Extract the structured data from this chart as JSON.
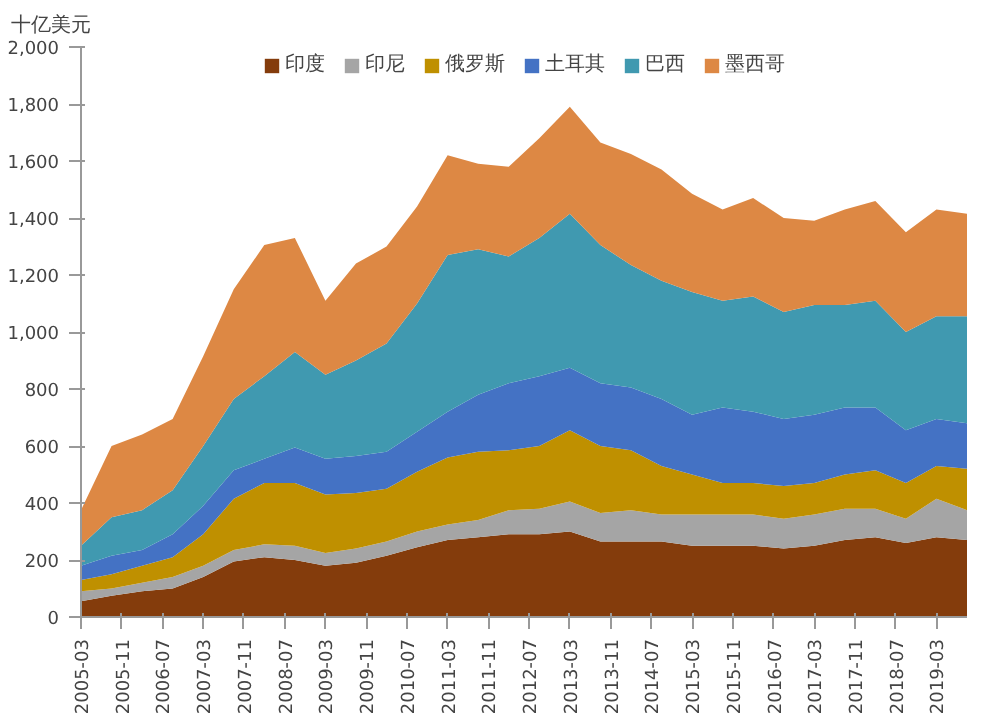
{
  "chart_data": {
    "type": "area",
    "stacked": true,
    "ylabel": "十亿美元",
    "legend": "top",
    "grid": false,
    "x": [
      "2005-03",
      "2005-09",
      "2006-03",
      "2006-09",
      "2007-03",
      "2007-09",
      "2008-03",
      "2008-09",
      "2009-03",
      "2009-09",
      "2010-03",
      "2010-09",
      "2011-03",
      "2011-09",
      "2012-03",
      "2012-09",
      "2013-03",
      "2013-09",
      "2014-03",
      "2014-09",
      "2015-03",
      "2015-09",
      "2016-03",
      "2016-09",
      "2017-03",
      "2017-09",
      "2018-03",
      "2018-09",
      "2019-03",
      "2019-09"
    ],
    "series": [
      {
        "name": "印度",
        "color": "#843c0c",
        "values": [
          55,
          75,
          90,
          100,
          140,
          195,
          210,
          200,
          180,
          190,
          215,
          245,
          270,
          280,
          290,
          290,
          300,
          265,
          265,
          265,
          250,
          250,
          250,
          240,
          250,
          270,
          280,
          260,
          280,
          270
        ]
      },
      {
        "name": "印尼",
        "color": "#a5a5a5",
        "values": [
          35,
          25,
          30,
          40,
          40,
          40,
          45,
          50,
          45,
          50,
          50,
          55,
          55,
          60,
          85,
          90,
          105,
          100,
          110,
          95,
          110,
          110,
          110,
          105,
          110,
          110,
          100,
          85,
          135,
          105
        ]
      },
      {
        "name": "俄罗斯",
        "color": "#bf9000",
        "values": [
          40,
          50,
          60,
          70,
          110,
          180,
          215,
          220,
          205,
          195,
          185,
          210,
          235,
          240,
          210,
          220,
          250,
          235,
          210,
          170,
          140,
          110,
          110,
          115,
          110,
          120,
          135,
          125,
          115,
          145
        ]
      },
      {
        "name": "土耳其",
        "color": "#4472c4",
        "values": [
          50,
          65,
          55,
          80,
          100,
          100,
          85,
          125,
          125,
          130,
          130,
          140,
          160,
          200,
          235,
          245,
          220,
          220,
          220,
          235,
          210,
          265,
          250,
          235,
          240,
          235,
          220,
          185,
          165,
          160
        ]
      },
      {
        "name": "巴西",
        "color": "#4099b0",
        "values": [
          70,
          135,
          140,
          155,
          210,
          250,
          290,
          335,
          295,
          335,
          380,
          450,
          550,
          510,
          445,
          485,
          540,
          485,
          430,
          415,
          430,
          375,
          405,
          375,
          385,
          360,
          375,
          345,
          360,
          375
        ]
      },
      {
        "name": "墨西哥",
        "color": "#dd8844",
        "values": [
          125,
          250,
          265,
          250,
          315,
          385,
          460,
          400,
          260,
          340,
          340,
          340,
          350,
          300,
          315,
          350,
          375,
          360,
          390,
          390,
          345,
          320,
          345,
          330,
          295,
          335,
          350,
          350,
          375,
          360
        ]
      }
    ],
    "xlim": [
      "2005-03",
      "2019-09"
    ],
    "xticks": [
      "2005-03",
      "2005-11",
      "2006-07",
      "2007-03",
      "2007-11",
      "2008-07",
      "2009-03",
      "2009-11",
      "2010-07",
      "2011-03",
      "2011-11",
      "2012-07",
      "2013-03",
      "2013-11",
      "2014-07",
      "2015-03",
      "2015-11",
      "2016-07",
      "2017-03",
      "2017-11",
      "2018-07",
      "2019-03"
    ],
    "ylim": [
      0,
      2000
    ],
    "yticks": [
      0,
      200,
      400,
      600,
      800,
      {
        "value": 1000,
        "label": "1,000"
      },
      {
        "value": 1200,
        "label": "1,200"
      },
      {
        "value": 1400,
        "label": "1,400"
      },
      {
        "value": 1600,
        "label": "1,600"
      },
      {
        "value": 1800,
        "label": "1,800"
      },
      {
        "value": 2000,
        "label": "2,000"
      }
    ]
  }
}
